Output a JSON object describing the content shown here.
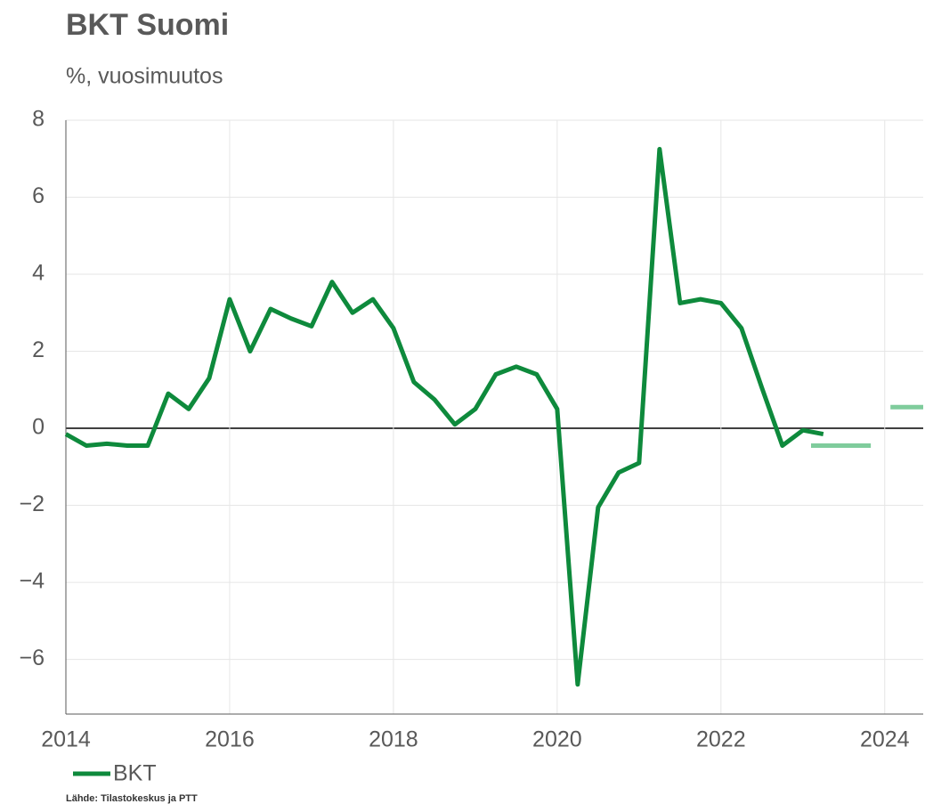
{
  "chart_data": {
    "type": "line",
    "title": "BKT Suomi",
    "subtitle": "%, vuosimuutos",
    "source": "Lähde: Tilastokeskus ja PTT",
    "x": [
      2014,
      2014.25,
      2014.5,
      2014.75,
      2015,
      2015.25,
      2015.5,
      2015.75,
      2016,
      2016.25,
      2016.5,
      2016.75,
      2017,
      2017.25,
      2017.5,
      2017.75,
      2018,
      2018.25,
      2018.5,
      2018.75,
      2019,
      2019.25,
      2019.5,
      2019.75,
      2020,
      2020.25,
      2020.5,
      2020.75,
      2021,
      2021.25,
      2021.5,
      2021.75,
      2022,
      2022.25,
      2022.5,
      2022.75,
      2023,
      2023.25
    ],
    "series": [
      {
        "name": "BKT",
        "color": "#0e8a3c",
        "values": [
          -0.15,
          -0.45,
          -0.4,
          -0.45,
          -0.45,
          0.9,
          0.5,
          1.3,
          3.35,
          2.0,
          3.1,
          2.85,
          2.65,
          3.8,
          3.0,
          3.35,
          2.6,
          1.2,
          0.75,
          0.1,
          0.5,
          1.4,
          1.6,
          1.4,
          0.5,
          -6.65,
          -2.05,
          -1.15,
          -0.9,
          7.25,
          3.25,
          3.35,
          3.25,
          2.6,
          1.05,
          -0.45,
          -0.05,
          -0.15
        ]
      }
    ],
    "forecast": {
      "color": "#7fcc9c",
      "x": [
        [
          2023.1,
          2023.83
        ],
        [
          2024.07,
          2024.47
        ]
      ],
      "values": [
        -0.45,
        0.55
      ]
    },
    "xlim": [
      2014,
      2024.47
    ],
    "ylim": [
      -7.42,
      8
    ],
    "xticks": [
      2014,
      2016,
      2018,
      2020,
      2022,
      2024
    ],
    "yticks": [
      {
        "value": -6,
        "label": "−6"
      },
      {
        "value": -4,
        "label": "−4"
      },
      {
        "value": -2,
        "label": "−2"
      },
      0,
      2,
      4,
      6,
      8
    ],
    "grid": true
  }
}
